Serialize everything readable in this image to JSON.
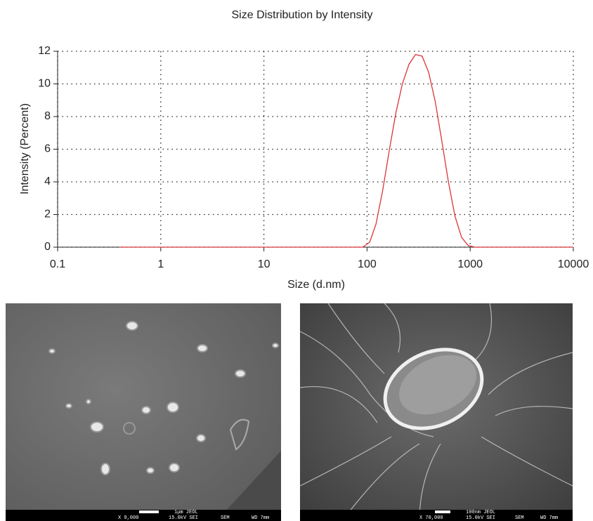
{
  "chart_data": {
    "type": "line",
    "title": "Size Distribution by Intensity",
    "x_label": "Size (d.nm)",
    "y_label": "Intensity (Percent)",
    "x": [
      0.4,
      1,
      10,
      91,
      106,
      122,
      142,
      164,
      190,
      220,
      255,
      295,
      342,
      396,
      459,
      531,
      615,
      712,
      825,
      955,
      1110,
      10000
    ],
    "values": [
      0,
      0,
      0,
      0,
      0.3,
      1.4,
      3.5,
      5.9,
      8.2,
      10.0,
      11.2,
      11.8,
      11.7,
      10.7,
      8.9,
      6.5,
      4.0,
      1.9,
      0.6,
      0.1,
      0,
      0
    ],
    "color": "#d9363a",
    "xscale": "log",
    "xlim": [
      0.1,
      10000
    ],
    "xticks": [
      0.1,
      1,
      10,
      100,
      1000,
      10000
    ],
    "ylim": [
      0,
      12
    ],
    "yticks": [
      0,
      2,
      4,
      6,
      8,
      10,
      12
    ],
    "grid": true
  },
  "images": [
    {
      "scale_label": "1μm JEOL",
      "footer": [
        "X 9,000",
        "15.0kV SEI",
        "SEM",
        "WD 7mm"
      ]
    },
    {
      "scale_label": "100nm JEOL",
      "footer": [
        "X 70,000",
        "15.0kV SEI",
        "SEM",
        "WD 7mm"
      ]
    }
  ]
}
